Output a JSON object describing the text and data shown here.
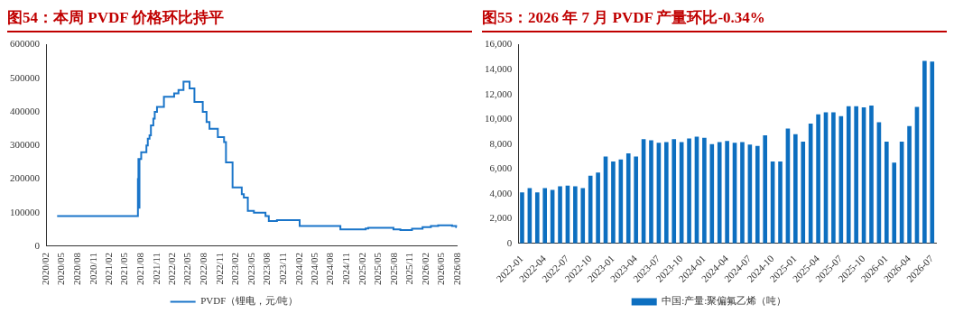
{
  "chart_data": [
    {
      "type": "step",
      "title": "图54：本周 PVDF 价格环比持平",
      "legend": "bottom",
      "grid": false,
      "xlim": [
        "2020-02",
        "2026-08"
      ],
      "xticks": [
        {
          "value": "2020-02",
          "label": "2020/02"
        },
        {
          "value": "2020-05",
          "label": "2020/05"
        },
        {
          "value": "2020-08",
          "label": "2020/08"
        },
        {
          "value": "2020-11",
          "label": "2020/11"
        },
        {
          "value": "2021-02",
          "label": "2021/02"
        },
        {
          "value": "2021-05",
          "label": "2021/05"
        },
        {
          "value": "2021-08",
          "label": "2021/08"
        },
        {
          "value": "2021-11",
          "label": "2021/11"
        },
        {
          "value": "2022-02",
          "label": "2022/02"
        },
        {
          "value": "2022-05",
          "label": "2022/05"
        },
        {
          "value": "2022-08",
          "label": "2022/08"
        },
        {
          "value": "2022-11",
          "label": "2022/11"
        },
        {
          "value": "2023-02",
          "label": "2023/02"
        },
        {
          "value": "2023-05",
          "label": "2023/05"
        },
        {
          "value": "2023-08",
          "label": "2023/08"
        },
        {
          "value": "2023-11",
          "label": "2023/11"
        },
        {
          "value": "2024-02",
          "label": "2024/02"
        },
        {
          "value": "2024-05",
          "label": "2024/05"
        },
        {
          "value": "2024-08",
          "label": "2024/08"
        },
        {
          "value": "2024-11",
          "label": "2024/11"
        },
        {
          "value": "2025-02",
          "label": "2025/02"
        },
        {
          "value": "2025-05",
          "label": "2025/05"
        },
        {
          "value": "2025-08",
          "label": "2025/08"
        },
        {
          "value": "2025-11",
          "label": "2025/11"
        },
        {
          "value": "2026-02",
          "label": "2026/02"
        },
        {
          "value": "2026-05",
          "label": "2026/05"
        },
        {
          "value": "2026-08",
          "label": "2026/08"
        }
      ],
      "ylim": [
        0,
        600000
      ],
      "yticks": [
        0,
        100000,
        200000,
        300000,
        400000,
        500000,
        600000
      ],
      "series": [
        {
          "name": "PVDF（锂电，元/吨）",
          "color": "#1a75c9",
          "x": [
            "2020-04-05",
            "2021-07-14",
            "2021-07-15",
            "2021-07-18",
            "2021-07-22",
            "2021-07-24",
            "2021-08-03",
            "2021-09-02",
            "2021-09-10",
            "2021-09-20",
            "2021-09-28",
            "2021-10-12",
            "2021-10-20",
            "2021-11-02",
            "2021-12-12",
            "2022-02-09",
            "2022-03-06",
            "2022-04-04",
            "2022-05-09",
            "2022-06-06",
            "2022-07-24",
            "2022-08-15",
            "2022-09-01",
            "2022-10-19",
            "2022-11-24",
            "2022-12-05",
            "2023-01-12",
            "2023-03-06",
            "2023-03-18",
            "2023-04-10",
            "2023-05-15",
            "2023-07-21",
            "2023-08-09",
            "2023-09-25",
            "2024-02-03",
            "2024-09-25",
            "2025-02-18",
            "2025-03-05",
            "2025-07-28",
            "2025-09-06",
            "2025-11-12",
            "2026-01-12",
            "2026-03-01",
            "2026-04-12",
            "2026-07-01",
            "2026-07-25",
            "2026-07-28"
          ],
          "values": [
            90000,
            90000,
            200000,
            260000,
            115000,
            260000,
            280000,
            300000,
            320000,
            330000,
            360000,
            380000,
            400000,
            415000,
            445000,
            455000,
            465000,
            490000,
            470000,
            430000,
            400000,
            370000,
            350000,
            325000,
            310000,
            250000,
            175000,
            155000,
            145000,
            105000,
            100000,
            90000,
            75000,
            78000,
            60000,
            50000,
            53000,
            55000,
            50000,
            48000,
            52000,
            57000,
            60000,
            62000,
            60000,
            57000,
            57000
          ]
        }
      ]
    },
    {
      "type": "bar",
      "title": "图55：2026 年 7 月 PVDF 产量环比-0.34%",
      "legend": "bottom",
      "grid": false,
      "categories": [
        "2022-01",
        null,
        null,
        "2022-04",
        null,
        null,
        "2022-07",
        null,
        null,
        "2022-10",
        null,
        null,
        "2023-01",
        null,
        null,
        "2023-04",
        null,
        null,
        "2023-07",
        null,
        null,
        "2023-10",
        null,
        null,
        "2024-01",
        null,
        null,
        "2024-04",
        null,
        null,
        "2024-07",
        null,
        null,
        "2024-10",
        null,
        null,
        "2025-01",
        null,
        null,
        "2025-04",
        null,
        null,
        "2025-07",
        null,
        null,
        "2025-10",
        null,
        null,
        "2026-01",
        null,
        null,
        "2026-04",
        null,
        null,
        "2026-07"
      ],
      "ylim": [
        0,
        16000
      ],
      "yticks": [
        0,
        {
          "value": 2000,
          "label": "2,000"
        },
        {
          "value": 4000,
          "label": "4,000"
        },
        {
          "value": 6000,
          "label": "6,000"
        },
        {
          "value": 8000,
          "label": "8,000"
        },
        {
          "value": 10000,
          "label": "10,000"
        },
        {
          "value": 12000,
          "label": "12,000"
        },
        {
          "value": 14000,
          "label": "14,000"
        },
        {
          "value": 16000,
          "label": "16,000"
        }
      ],
      "series": [
        {
          "name": "中国:产量:聚偏氟乙烯（吨）",
          "color": "#0d6fc0",
          "values": [
            4100,
            4450,
            4100,
            4450,
            4300,
            4600,
            4650,
            4600,
            4450,
            5450,
            5700,
            7000,
            6600,
            6750,
            7250,
            7000,
            8400,
            8300,
            8100,
            8150,
            8400,
            8150,
            8450,
            8600,
            8500,
            8000,
            8150,
            8250,
            8100,
            8150,
            7950,
            7850,
            8700,
            6600,
            6600,
            9250,
            8800,
            8200,
            9650,
            10400,
            10550,
            10550,
            10250,
            11050,
            11050,
            10950,
            11100,
            9750,
            8200,
            6500,
            8200,
            9450,
            11000,
            14700,
            14650
          ]
        }
      ]
    }
  ]
}
